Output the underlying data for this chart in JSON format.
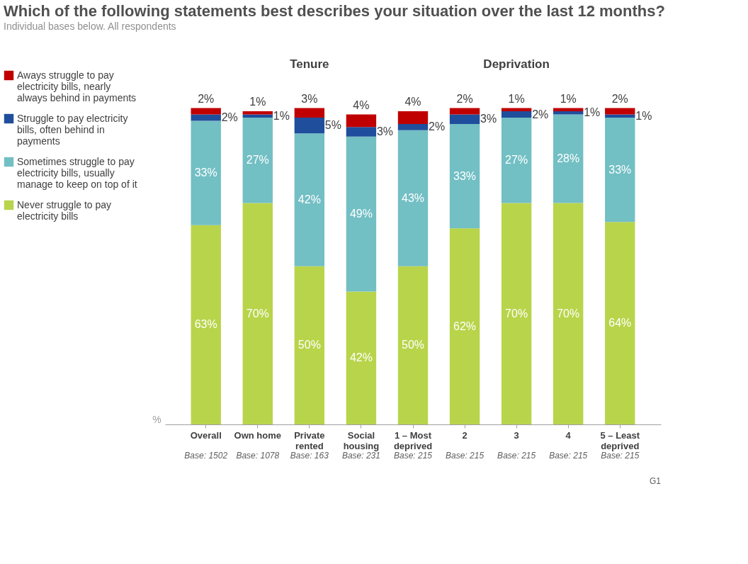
{
  "chart_data": {
    "type": "bar",
    "stacked": true,
    "legend": "left",
    "grid": false,
    "title": "Which of the following statements best describes your situation over the last 12 months?",
    "subtitle": "Individual bases below. All respondents",
    "ylabel": "%",
    "categories": [
      "Overall",
      "Own home",
      "Private rented",
      "Social housing",
      "1 – Most deprived",
      "2",
      "3",
      "4",
      "5 – Least deprived"
    ],
    "series": [
      {
        "name": "Never struggle to pay electricity bills",
        "color": "#b8d44a",
        "values": [
          63,
          70,
          50,
          42,
          50,
          62,
          70,
          70,
          64
        ],
        "value_labels": [
          "63%",
          "70%",
          "50%",
          "42%",
          "50%",
          "62%",
          "70%",
          "70%",
          "64%"
        ]
      },
      {
        "name": "Sometimes struggle to pay electricity bills, usually manage to keep on top of it",
        "color": "#72bfc4",
        "values": [
          33,
          27,
          42,
          49,
          43,
          33,
          27,
          28,
          33
        ],
        "value_labels": [
          "33%",
          "27%",
          "42%",
          "49%",
          "43%",
          "33%",
          "27%",
          "28%",
          "33%"
        ]
      },
      {
        "name": "Struggle to pay electricity bills, often behind in payments",
        "color": "#1f4e9c",
        "values": [
          2,
          1,
          5,
          3,
          2,
          3,
          2,
          1,
          1
        ],
        "value_labels": [
          "2%",
          "1%",
          "5%",
          "3%",
          "2%",
          "3%",
          "2%",
          "1%",
          "1%"
        ]
      },
      {
        "name": "Aways struggle to pay electricity bills, nearly always behind in payments",
        "color": "#c00000",
        "values": [
          2,
          1,
          3,
          4,
          4,
          2,
          1,
          1,
          2
        ],
        "value_labels": [
          "2%",
          "1%",
          "3%",
          "4%",
          "4%",
          "2%",
          "1%",
          "1%",
          "2%"
        ]
      }
    ],
    "annotations": [
      "Tenure",
      "Deprivation",
      "Base: 1502",
      "Base: 1078",
      "Base: 163",
      "Base: 231",
      "Base: 215",
      "Base: 215",
      "Base: 215",
      "Base: 215",
      "Base: 215",
      "G1"
    ]
  }
}
